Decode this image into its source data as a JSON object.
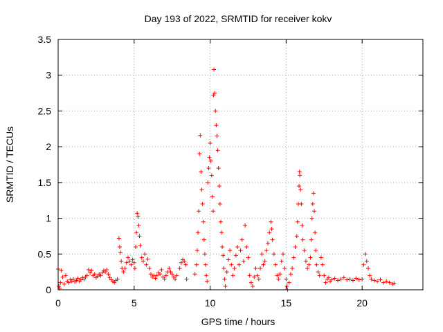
{
  "chart_data": {
    "type": "scatter",
    "title": "Day 193 of 2022, SRMTID for receiver kokv",
    "xlabel": "GPS time / hours",
    "ylabel": "SRMTID / TECUs",
    "xlim": [
      0,
      24
    ],
    "ylim": [
      0,
      3.5
    ],
    "xticks": [
      0,
      5,
      10,
      15,
      20
    ],
    "xtick_labels": [
      "0",
      "5",
      "10",
      "15",
      "20"
    ],
    "yticks": [
      0,
      0.5,
      1,
      1.5,
      2,
      2.5,
      3,
      3.5
    ],
    "ytick_labels": [
      "0",
      "0.5",
      "1",
      "1.5",
      "2",
      "2.5",
      "3",
      "3.5"
    ],
    "grid": true,
    "marker": "+",
    "series": [
      {
        "name": "SRMTID",
        "color": "#ff0000",
        "points": [
          [
            0.0,
            0.29
          ],
          [
            0.05,
            0.05
          ],
          [
            0.1,
            0.02
          ],
          [
            0.15,
            0.1
          ],
          [
            0.2,
            0.27
          ],
          [
            0.3,
            0.18
          ],
          [
            0.4,
            0.08
          ],
          [
            0.5,
            0.2
          ],
          [
            0.6,
            0.12
          ],
          [
            0.7,
            0.1
          ],
          [
            0.8,
            0.14
          ],
          [
            0.9,
            0.12
          ],
          [
            1.0,
            0.15
          ],
          [
            1.1,
            0.11
          ],
          [
            1.2,
            0.13
          ],
          [
            1.3,
            0.16
          ],
          [
            1.4,
            0.12
          ],
          [
            1.5,
            0.14
          ],
          [
            1.6,
            0.17
          ],
          [
            1.7,
            0.15
          ],
          [
            1.8,
            0.18
          ],
          [
            1.9,
            0.2
          ],
          [
            2.0,
            0.28
          ],
          [
            2.1,
            0.24
          ],
          [
            2.2,
            0.27
          ],
          [
            2.3,
            0.2
          ],
          [
            2.4,
            0.22
          ],
          [
            2.5,
            0.17
          ],
          [
            2.6,
            0.19
          ],
          [
            2.7,
            0.22
          ],
          [
            2.8,
            0.2
          ],
          [
            2.9,
            0.24
          ],
          [
            3.0,
            0.27
          ],
          [
            3.1,
            0.25
          ],
          [
            3.2,
            0.28
          ],
          [
            3.3,
            0.22
          ],
          [
            3.4,
            0.17
          ],
          [
            3.5,
            0.14
          ],
          [
            3.6,
            0.12
          ],
          [
            3.7,
            0.1
          ],
          [
            3.8,
            0.13
          ],
          [
            3.9,
            0.15
          ],
          [
            4.0,
            0.72
          ],
          [
            4.05,
            0.6
          ],
          [
            4.1,
            0.52
          ],
          [
            4.15,
            0.4
          ],
          [
            4.2,
            0.3
          ],
          [
            4.3,
            0.25
          ],
          [
            4.4,
            0.3
          ],
          [
            4.5,
            0.38
          ],
          [
            4.6,
            0.45
          ],
          [
            4.7,
            0.4
          ],
          [
            4.8,
            0.35
          ],
          [
            4.9,
            0.42
          ],
          [
            5.0,
            0.38
          ],
          [
            5.05,
            0.3
          ],
          [
            5.1,
            0.6
          ],
          [
            5.15,
            0.8
          ],
          [
            5.2,
            1.07
          ],
          [
            5.25,
            1.02
          ],
          [
            5.3,
            0.9
          ],
          [
            5.35,
            0.75
          ],
          [
            5.4,
            0.62
          ],
          [
            5.5,
            0.45
          ],
          [
            5.6,
            0.4
          ],
          [
            5.7,
            0.5
          ],
          [
            5.8,
            0.35
          ],
          [
            5.9,
            0.43
          ],
          [
            6.0,
            0.3
          ],
          [
            6.1,
            0.22
          ],
          [
            6.2,
            0.18
          ],
          [
            6.3,
            0.2
          ],
          [
            6.4,
            0.16
          ],
          [
            6.5,
            0.2
          ],
          [
            6.6,
            0.24
          ],
          [
            6.7,
            0.22
          ],
          [
            6.8,
            0.28
          ],
          [
            6.9,
            0.18
          ],
          [
            7.0,
            0.15
          ],
          [
            7.1,
            0.2
          ],
          [
            7.2,
            0.25
          ],
          [
            7.3,
            0.3
          ],
          [
            7.4,
            0.25
          ],
          [
            7.5,
            0.22
          ],
          [
            7.6,
            0.18
          ],
          [
            7.7,
            0.15
          ],
          [
            7.8,
            0.2
          ],
          [
            8.0,
            0.3
          ],
          [
            8.1,
            0.38
          ],
          [
            8.2,
            0.42
          ],
          [
            8.3,
            0.4
          ],
          [
            8.4,
            0.35
          ],
          [
            8.45,
            0.15
          ],
          [
            9.0,
            0.22
          ],
          [
            9.1,
            0.35
          ],
          [
            9.15,
            0.55
          ],
          [
            9.2,
            0.8
          ],
          [
            9.25,
            1.1
          ],
          [
            9.3,
            1.9
          ],
          [
            9.35,
            2.16
          ],
          [
            9.4,
            1.65
          ],
          [
            9.45,
            1.4
          ],
          [
            9.5,
            1.2
          ],
          [
            9.55,
            0.95
          ],
          [
            9.6,
            0.7
          ],
          [
            9.65,
            0.5
          ],
          [
            9.7,
            0.35
          ],
          [
            9.75,
            0.2
          ],
          [
            9.8,
            0.12
          ],
          [
            9.85,
            1.5
          ],
          [
            9.9,
            1.7
          ],
          [
            9.95,
            1.85
          ],
          [
            10.0,
            2.05
          ],
          [
            10.05,
            1.8
          ],
          [
            10.1,
            1.6
          ],
          [
            10.15,
            1.3
          ],
          [
            10.2,
            1.1
          ],
          [
            10.22,
            2.72
          ],
          [
            10.25,
            3.08
          ],
          [
            10.3,
            2.75
          ],
          [
            10.35,
            2.5
          ],
          [
            10.4,
            2.3
          ],
          [
            10.45,
            2.15
          ],
          [
            10.5,
            1.95
          ],
          [
            10.55,
            1.7
          ],
          [
            10.6,
            1.45
          ],
          [
            10.65,
            1.2
          ],
          [
            10.7,
            0.95
          ],
          [
            10.75,
            0.8
          ],
          [
            10.8,
            0.6
          ],
          [
            10.85,
            0.48
          ],
          [
            10.9,
            0.3
          ],
          [
            10.95,
            0.15
          ],
          [
            11.0,
            0.05
          ],
          [
            11.1,
            0.25
          ],
          [
            11.2,
            0.42
          ],
          [
            11.3,
            0.55
          ],
          [
            11.4,
            0.35
          ],
          [
            11.5,
            0.2
          ],
          [
            11.6,
            0.3
          ],
          [
            11.7,
            0.48
          ],
          [
            11.8,
            0.6
          ],
          [
            11.9,
            0.35
          ],
          [
            12.0,
            0.55
          ],
          [
            12.1,
            0.7
          ],
          [
            12.2,
            0.4
          ],
          [
            12.3,
            0.9
          ],
          [
            12.4,
            0.6
          ],
          [
            12.5,
            0.45
          ],
          [
            12.6,
            0.2
          ],
          [
            12.7,
            0.1
          ],
          [
            12.8,
            0.05
          ],
          [
            12.9,
            0.18
          ],
          [
            13.0,
            0.3
          ],
          [
            13.1,
            0.2
          ],
          [
            13.2,
            0.15
          ],
          [
            13.3,
            0.3
          ],
          [
            13.4,
            0.5
          ],
          [
            13.5,
            0.35
          ],
          [
            13.6,
            0.4
          ],
          [
            13.7,
            0.55
          ],
          [
            13.8,
            0.65
          ],
          [
            13.9,
            0.8
          ],
          [
            14.0,
            0.95
          ],
          [
            14.05,
            0.85
          ],
          [
            14.1,
            0.7
          ],
          [
            14.2,
            0.5
          ],
          [
            14.3,
            0.35
          ],
          [
            14.4,
            0.2
          ],
          [
            14.5,
            0.15
          ],
          [
            14.6,
            0.22
          ],
          [
            14.7,
            0.4
          ],
          [
            14.8,
            0.5
          ],
          [
            14.9,
            0.3
          ],
          [
            15.0,
            0.15
          ],
          [
            15.05,
            0.05
          ],
          [
            15.1,
            0.0
          ],
          [
            15.2,
            0.1
          ],
          [
            15.3,
            0.22
          ],
          [
            15.4,
            0.3
          ],
          [
            15.5,
            0.45
          ],
          [
            15.6,
            0.6
          ],
          [
            15.7,
            0.75
          ],
          [
            15.75,
            0.95
          ],
          [
            15.8,
            1.2
          ],
          [
            15.85,
            1.45
          ],
          [
            15.88,
            1.65
          ],
          [
            15.9,
            1.6
          ],
          [
            15.95,
            1.4
          ],
          [
            16.0,
            1.2
          ],
          [
            16.05,
            0.9
          ],
          [
            16.1,
            0.7
          ],
          [
            16.2,
            0.55
          ],
          [
            16.3,
            0.4
          ],
          [
            16.4,
            0.3
          ],
          [
            16.5,
            0.35
          ],
          [
            16.6,
            0.45
          ],
          [
            16.65,
            0.7
          ],
          [
            16.7,
            1.0
          ],
          [
            16.75,
            1.2
          ],
          [
            16.8,
            1.35
          ],
          [
            16.85,
            1.1
          ],
          [
            16.9,
            0.8
          ],
          [
            16.95,
            0.55
          ],
          [
            17.0,
            0.35
          ],
          [
            17.1,
            0.25
          ],
          [
            17.2,
            0.2
          ],
          [
            17.3,
            0.45
          ],
          [
            17.4,
            0.35
          ],
          [
            17.5,
            0.2
          ],
          [
            17.6,
            0.1
          ],
          [
            17.7,
            0.15
          ],
          [
            17.8,
            0.17
          ],
          [
            17.9,
            0.12
          ],
          [
            18.0,
            0.14
          ],
          [
            18.2,
            0.16
          ],
          [
            18.4,
            0.13
          ],
          [
            18.6,
            0.15
          ],
          [
            18.8,
            0.17
          ],
          [
            19.0,
            0.14
          ],
          [
            19.2,
            0.15
          ],
          [
            19.4,
            0.13
          ],
          [
            19.6,
            0.16
          ],
          [
            19.8,
            0.14
          ],
          [
            20.0,
            0.15
          ],
          [
            20.1,
            0.35
          ],
          [
            20.2,
            0.5
          ],
          [
            20.3,
            0.4
          ],
          [
            20.4,
            0.3
          ],
          [
            20.5,
            0.2
          ],
          [
            20.6,
            0.15
          ],
          [
            20.8,
            0.13
          ],
          [
            21.0,
            0.12
          ],
          [
            21.2,
            0.14
          ],
          [
            21.4,
            0.1
          ],
          [
            21.6,
            0.12
          ],
          [
            21.8,
            0.1
          ],
          [
            22.0,
            0.08
          ],
          [
            22.1,
            0.09
          ]
        ]
      }
    ]
  }
}
